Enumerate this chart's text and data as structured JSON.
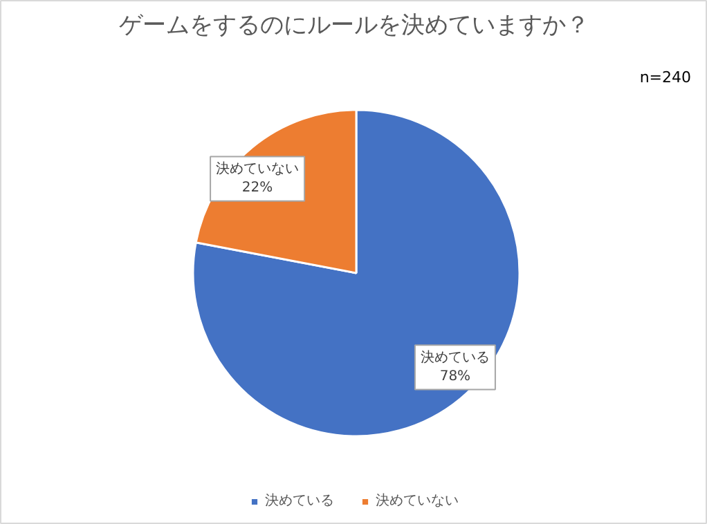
{
  "chart_data": {
    "type": "pie",
    "title": "ゲームをするのにルールを決めていますか？",
    "annotations": [
      "n=240"
    ],
    "categories": [
      "決めている",
      "決めていない"
    ],
    "values": [
      78,
      22
    ],
    "colors": [
      "#4472c4",
      "#ed7d31"
    ],
    "value_labels": [
      "78%",
      "22%"
    ],
    "legend": "bottom"
  }
}
